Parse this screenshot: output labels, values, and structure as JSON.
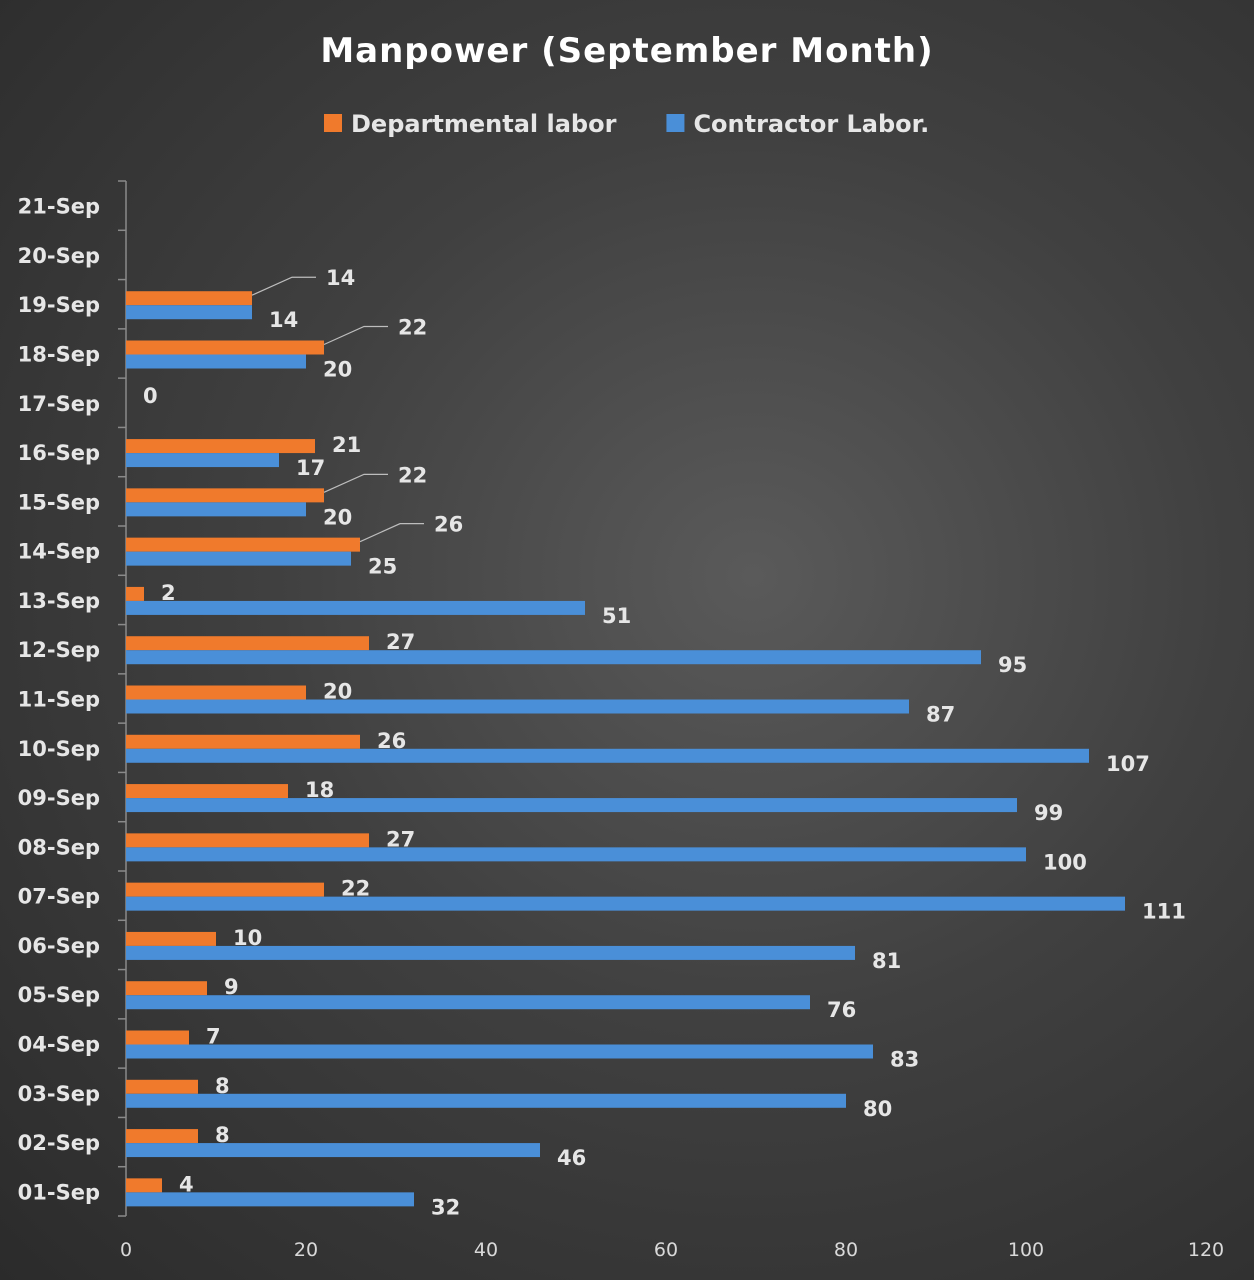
{
  "chart_data": {
    "type": "bar",
    "orientation": "horizontal",
    "title": "Manpower (September Month)",
    "xlabel": "",
    "ylabel": "",
    "xlim": [
      0,
      120
    ],
    "x_ticks": [
      0,
      20,
      40,
      60,
      80,
      100,
      120
    ],
    "grid": false,
    "legend_position": "top",
    "categories": [
      "01-Sep",
      "02-Sep",
      "03-Sep",
      "04-Sep",
      "05-Sep",
      "06-Sep",
      "07-Sep",
      "08-Sep",
      "09-Sep",
      "10-Sep",
      "11-Sep",
      "12-Sep",
      "13-Sep",
      "14-Sep",
      "15-Sep",
      "16-Sep",
      "17-Sep",
      "18-Sep",
      "19-Sep",
      "20-Sep",
      "21-Sep"
    ],
    "series": [
      {
        "name": "Departmental  labor",
        "color": "#f07a2c",
        "values": [
          4,
          8,
          8,
          7,
          9,
          10,
          22,
          27,
          18,
          26,
          20,
          27,
          2,
          26,
          22,
          21,
          0,
          22,
          14,
          null,
          null
        ],
        "labels": [
          "4",
          "8",
          "8",
          "7",
          "9",
          "10",
          "22",
          "27",
          "18",
          "26",
          "20",
          "27",
          "2",
          "26",
          "22",
          "21",
          "0",
          "22",
          "14",
          "",
          ""
        ]
      },
      {
        "name": "Contractor Labor.",
        "color": "#4a8fd8",
        "values": [
          32,
          46,
          80,
          83,
          76,
          81,
          111,
          100,
          99,
          107,
          87,
          95,
          51,
          25,
          20,
          17,
          null,
          20,
          14,
          null,
          null
        ],
        "labels": [
          "32",
          "46",
          "80",
          "83",
          "76",
          "81",
          "111",
          "100",
          "99",
          "107",
          "87",
          "95",
          "51",
          "25",
          "20",
          "17",
          "",
          "20",
          "14",
          "",
          ""
        ]
      }
    ]
  }
}
